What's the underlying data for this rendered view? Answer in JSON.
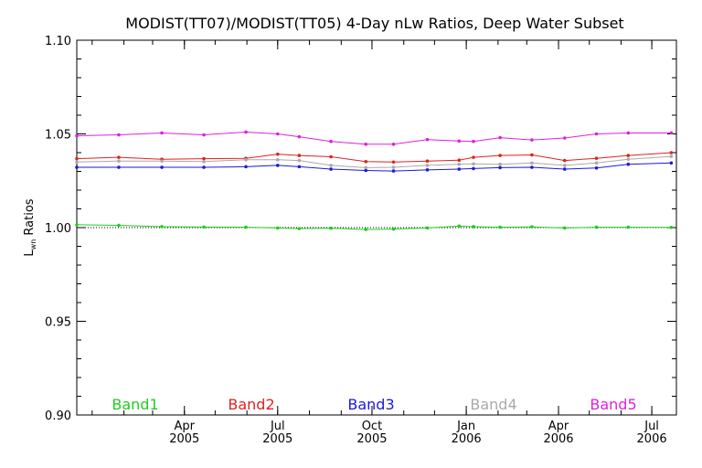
{
  "chart_data": {
    "type": "line",
    "title": "MODIST(TT07)/MODIST(TT05) 4-Day nLw Ratios, Deep Water Subset",
    "ylabel_main": "L",
    "ylabel_sub": "wn",
    "ylabel_rest": " Ratios",
    "ylim": [
      0.9,
      1.1
    ],
    "yticks": [
      "0.90",
      "0.95",
      "1.00",
      "1.05",
      "1.10"
    ],
    "xlim": [
      "2004-12-17",
      "2006-07-25"
    ],
    "xticks": [
      {
        "date": "2005-04-01",
        "month": "Apr",
        "year": "2005"
      },
      {
        "date": "2005-07-01",
        "month": "Jul",
        "year": "2005"
      },
      {
        "date": "2005-10-01",
        "month": "Oct",
        "year": "2005"
      },
      {
        "date": "2006-01-01",
        "month": "Jan",
        "year": "2006"
      },
      {
        "date": "2006-04-01",
        "month": "Apr",
        "year": "2006"
      },
      {
        "date": "2006-07-01",
        "month": "Jul",
        "year": "2006"
      }
    ],
    "reference_line": 1.0,
    "x": [
      "2004-12-17",
      "2005-01-27",
      "2005-03-10",
      "2005-04-20",
      "2005-05-31",
      "2005-07-01",
      "2005-07-22",
      "2005-08-22",
      "2005-09-25",
      "2005-10-22",
      "2005-11-24",
      "2005-12-25",
      "2006-01-08",
      "2006-02-03",
      "2006-03-06",
      "2006-04-07",
      "2006-05-08",
      "2006-06-08",
      "2006-07-20"
    ],
    "series": [
      {
        "name": "Band1",
        "color": "#22cc22",
        "values": [
          1.0015,
          1.0012,
          1.0005,
          1.0003,
          1.0002,
          0.9998,
          0.9995,
          0.9997,
          0.999,
          0.9992,
          0.9998,
          1.0008,
          1.0005,
          1.0002,
          1.0004,
          0.9998,
          1.0002,
          1.0002,
          1.0001
        ]
      },
      {
        "name": "Band2",
        "color": "#dd2222",
        "values": [
          1.0368,
          1.0375,
          1.0365,
          1.0368,
          1.037,
          1.0392,
          1.0385,
          1.0378,
          1.0352,
          1.035,
          1.0355,
          1.036,
          1.0375,
          1.0385,
          1.0388,
          1.0358,
          1.037,
          1.0385,
          1.04
        ]
      },
      {
        "name": "Band3",
        "color": "#1a1adb",
        "values": [
          1.0322,
          1.0322,
          1.0322,
          1.0322,
          1.0325,
          1.0332,
          1.0325,
          1.0312,
          1.0305,
          1.0302,
          1.0308,
          1.0312,
          1.0315,
          1.032,
          1.0322,
          1.0312,
          1.0318,
          1.0338,
          1.0345
        ]
      },
      {
        "name": "Band4",
        "color": "#aaaaaa",
        "values": [
          1.035,
          1.0355,
          1.0355,
          1.0352,
          1.0362,
          1.0362,
          1.0358,
          1.0332,
          1.032,
          1.0322,
          1.0332,
          1.0338,
          1.034,
          1.0338,
          1.0345,
          1.0332,
          1.0345,
          1.0365,
          1.038
        ]
      },
      {
        "name": "Band5",
        "color": "#dd22dd",
        "values": [
          1.049,
          1.0495,
          1.0505,
          1.0495,
          1.051,
          1.05,
          1.0485,
          1.046,
          1.0445,
          1.0445,
          1.047,
          1.0462,
          1.046,
          1.048,
          1.0468,
          1.0478,
          1.05,
          1.0505,
          1.0505
        ]
      }
    ]
  }
}
